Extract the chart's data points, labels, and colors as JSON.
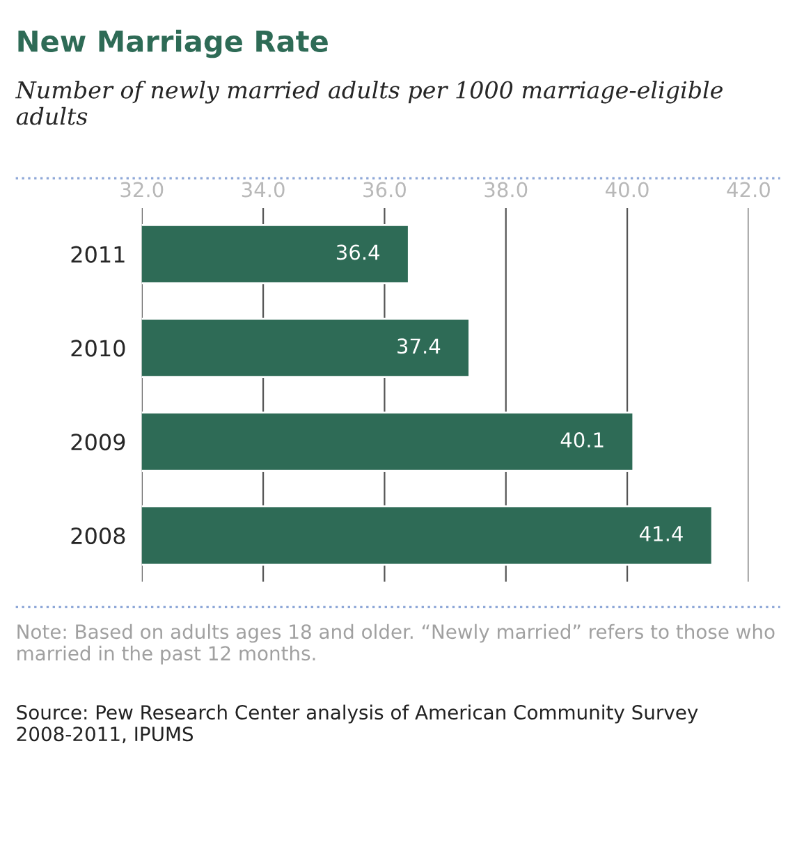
{
  "chart_data": {
    "type": "bar",
    "orientation": "horizontal",
    "title": "New Marriage Rate",
    "subtitle": "Number of newly married adults per 1000 marriage-eligible adults",
    "categories": [
      "2011",
      "2010",
      "2009",
      "2008"
    ],
    "values": [
      36.4,
      37.4,
      40.1,
      41.4
    ],
    "color": "#2e6b56",
    "xlim": [
      32,
      42
    ],
    "xticks": [
      {
        "value": 32,
        "label": "32.0"
      },
      {
        "value": 34,
        "label": "34.0"
      },
      {
        "value": 36,
        "label": "36.0"
      },
      {
        "value": 38,
        "label": "38.0"
      },
      {
        "value": 40,
        "label": "40.0"
      },
      {
        "value": 42,
        "label": "42.0"
      }
    ],
    "grid": "x",
    "data_labels": true,
    "annotations": [
      "Note: Based on adults ages 18 and older. “Newly married” refers to those who married in the past 12 months.",
      "Source: Pew Research Center analysis of American Community Survey 2008-2011, IPUMS"
    ]
  }
}
